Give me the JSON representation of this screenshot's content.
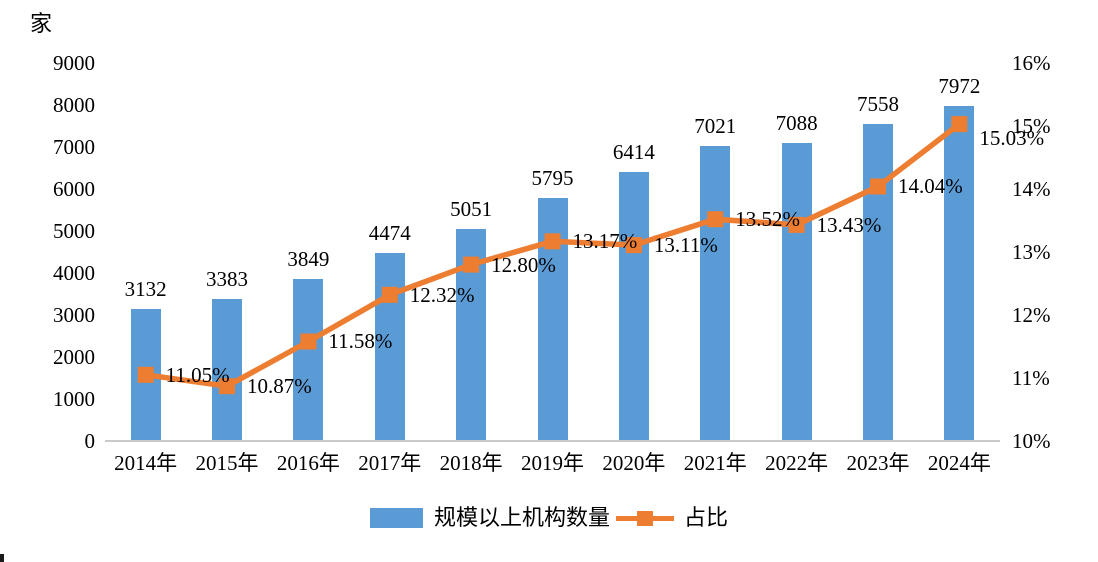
{
  "chart_data": {
    "type": "bar",
    "subtype": "combo-bar-line",
    "unit_label": "家",
    "categories": [
      "2014年",
      "2015年",
      "2016年",
      "2017年",
      "2018年",
      "2019年",
      "2020年",
      "2021年",
      "2022年",
      "2023年",
      "2024年"
    ],
    "series": [
      {
        "name": "规模以上机构数量",
        "kind": "bar",
        "axis": "left",
        "color": "#5B9BD5",
        "values": [
          3132,
          3383,
          3849,
          4474,
          5051,
          5795,
          6414,
          7021,
          7088,
          7558,
          7972
        ]
      },
      {
        "name": "占比",
        "kind": "line",
        "axis": "right",
        "color": "#ED7D31",
        "values": [
          11.05,
          10.87,
          11.58,
          12.32,
          12.8,
          13.17,
          13.11,
          13.52,
          13.43,
          14.04,
          15.03
        ],
        "value_labels": [
          "11.05%",
          "10.87%",
          "11.58%",
          "12.32%",
          "12.80%",
          "13.17%",
          "13.11%",
          "13.52%",
          "13.43%",
          "14.04%",
          "15.03%"
        ]
      }
    ],
    "left_axis": {
      "min": 0,
      "max": 9000,
      "step": 1000,
      "tick_labels": [
        "0",
        "1000",
        "2000",
        "3000",
        "4000",
        "5000",
        "6000",
        "7000",
        "8000",
        "9000"
      ]
    },
    "right_axis": {
      "min": 10,
      "max": 16,
      "step": 1,
      "tick_labels": [
        "10%",
        "11%",
        "12%",
        "13%",
        "14%",
        "15%",
        "16%"
      ]
    },
    "legend": {
      "position": "bottom",
      "entries": [
        "规模以上机构数量",
        "占比"
      ]
    },
    "grid": false,
    "text_color": "#000000",
    "axis_line_color": "#C9C9C9",
    "background": "#FFFFFF"
  }
}
